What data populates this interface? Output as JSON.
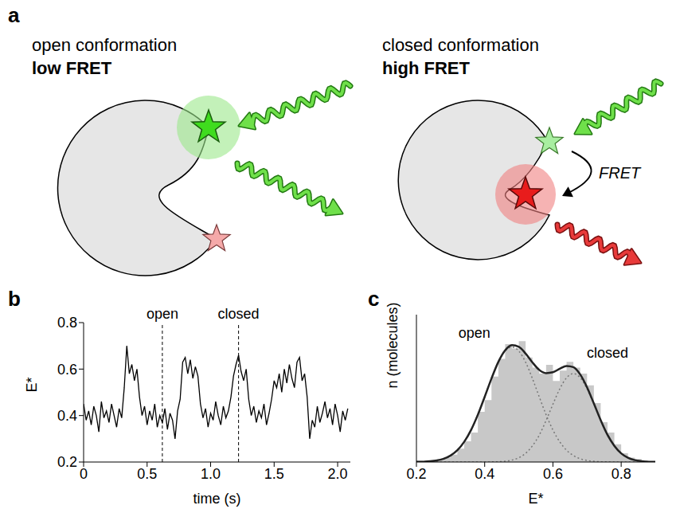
{
  "diagram": {
    "panel": "a",
    "left": {
      "title": "open conformation",
      "state": "low FRET"
    },
    "right": {
      "title": "closed conformation",
      "state": "high FRET",
      "arrow_label": "FRET"
    }
  },
  "chart_data": [
    {
      "panel": "b",
      "type": "line",
      "x_label": "time (s)",
      "y_label": "E*",
      "color": "#000000",
      "xlim": [
        0,
        2.1
      ],
      "xticks": [
        0,
        0.5,
        {
          "value": 1,
          "label": "1.0"
        },
        1.5,
        {
          "value": 2,
          "label": "2.0"
        }
      ],
      "ylim": [
        0.2,
        0.8
      ],
      "yticks": [
        0.2,
        0.4,
        0.6,
        0.8
      ],
      "annotations": [
        {
          "text": "open",
          "x": 0.62
        },
        {
          "text": "closed",
          "x": 1.22
        }
      ],
      "x": [
        0,
        0.02,
        0.04,
        0.06,
        0.08,
        0.1,
        0.12,
        0.14,
        0.16,
        0.18,
        0.2,
        0.22,
        0.24,
        0.26,
        0.28,
        0.3,
        0.32,
        0.34,
        0.36,
        0.38,
        0.4,
        0.42,
        0.44,
        0.46,
        0.48,
        0.5,
        0.52,
        0.54,
        0.56,
        0.58,
        0.6,
        0.62,
        0.64,
        0.66,
        0.68,
        0.7,
        0.72,
        0.74,
        0.76,
        0.78,
        0.8,
        0.82,
        0.84,
        0.86,
        0.88,
        0.9,
        0.92,
        0.94,
        0.96,
        0.98,
        1,
        1.02,
        1.04,
        1.06,
        1.08,
        1.1,
        1.12,
        1.14,
        1.16,
        1.18,
        1.2,
        1.22,
        1.24,
        1.26,
        1.28,
        1.3,
        1.32,
        1.34,
        1.36,
        1.38,
        1.4,
        1.42,
        1.44,
        1.46,
        1.48,
        1.5,
        1.52,
        1.54,
        1.56,
        1.58,
        1.6,
        1.62,
        1.64,
        1.66,
        1.68,
        1.7,
        1.72,
        1.74,
        1.76,
        1.78,
        1.8,
        1.82,
        1.84,
        1.86,
        1.88,
        1.9,
        1.92,
        1.94,
        1.96,
        1.98,
        2,
        2.02,
        2.04,
        2.06,
        2.08
      ],
      "values": [
        0.45,
        0.38,
        0.42,
        0.36,
        0.44,
        0.4,
        0.33,
        0.46,
        0.39,
        0.42,
        0.37,
        0.45,
        0.4,
        0.35,
        0.43,
        0.39,
        0.52,
        0.7,
        0.58,
        0.62,
        0.55,
        0.6,
        0.48,
        0.4,
        0.44,
        0.36,
        0.42,
        0.38,
        0.45,
        0.35,
        0.4,
        0.37,
        0.43,
        0.34,
        0.41,
        0.38,
        0.3,
        0.42,
        0.47,
        0.63,
        0.65,
        0.58,
        0.64,
        0.56,
        0.61,
        0.57,
        0.45,
        0.39,
        0.43,
        0.35,
        0.41,
        0.38,
        0.46,
        0.4,
        0.36,
        0.44,
        0.39,
        0.42,
        0.48,
        0.57,
        0.62,
        0.66,
        0.59,
        0.55,
        0.6,
        0.47,
        0.4,
        0.44,
        0.37,
        0.42,
        0.39,
        0.45,
        0.36,
        0.41,
        0.47,
        0.55,
        0.52,
        0.58,
        0.5,
        0.6,
        0.54,
        0.62,
        0.56,
        0.52,
        0.63,
        0.65,
        0.55,
        0.58,
        0.48,
        0.3,
        0.38,
        0.35,
        0.44,
        0.37,
        0.41,
        0.46,
        0.39,
        0.43,
        0.36,
        0.45,
        0.4,
        0.33,
        0.42,
        0.38,
        0.43
      ]
    },
    {
      "panel": "c",
      "type": "histogram",
      "x_label": "E*",
      "y_label": "n (molecules)",
      "color": "#c8c8c8",
      "xlim": [
        0.2,
        0.9
      ],
      "xticks": [
        0.2,
        0.4,
        0.6,
        0.8
      ],
      "ylim": [
        0,
        100
      ],
      "tick_labels": "x",
      "bins": [
        0.2,
        0.22,
        0.24,
        0.26,
        0.28,
        0.3,
        0.32,
        0.34,
        0.36,
        0.38,
        0.4,
        0.42,
        0.44,
        0.46,
        0.48,
        0.5,
        0.52,
        0.54,
        0.56,
        0.58,
        0.6,
        0.62,
        0.64,
        0.66,
        0.68,
        0.7,
        0.72,
        0.74,
        0.76,
        0.78,
        0.8,
        0.82,
        0.84,
        0.86,
        0.88,
        0.9
      ],
      "counts": [
        1,
        0,
        1,
        2,
        3,
        5,
        9,
        14,
        20,
        34,
        42,
        58,
        70,
        80,
        77,
        82,
        71,
        64,
        60,
        66,
        55,
        62,
        68,
        64,
        60,
        52,
        40,
        27,
        20,
        12,
        6,
        3,
        2,
        1,
        0
      ],
      "annotations": [
        {
          "text": "open",
          "x": 0.37,
          "y": 88
        },
        {
          "text": "closed",
          "x": 0.76,
          "y": 74
        }
      ],
      "curves": {
        "x": [
          0.2,
          0.22,
          0.24,
          0.26,
          0.28,
          0.3,
          0.32,
          0.34,
          0.36,
          0.38,
          0.4,
          0.42,
          0.44,
          0.46,
          0.48,
          0.5,
          0.52,
          0.54,
          0.56,
          0.58,
          0.6,
          0.62,
          0.64,
          0.66,
          0.68,
          0.7,
          0.72,
          0.74,
          0.76,
          0.78,
          0.8,
          0.82,
          0.84,
          0.86,
          0.88,
          0.9
        ],
        "series": [
          {
            "color": "#777777",
            "line_style": "dotted",
            "values": [
              0.1,
              0.2,
              0.5,
              1.1,
              2.2,
              4.4,
              8.0,
              13.7,
              21.7,
              32.1,
              44.2,
              56.6,
              67.7,
              75.3,
              78,
              75.3,
              67.7,
              56.6,
              44.2,
              32.1,
              21.7,
              13.7,
              8.0,
              4.4,
              2.2,
              1.1,
              0.5,
              0.2,
              0.1,
              0,
              0,
              0,
              0,
              0,
              0,
              0
            ]
          },
          {
            "color": "#777777",
            "line_style": "dotted",
            "values": [
              0,
              0,
              0,
              0,
              0,
              0,
              0,
              0,
              0,
              0,
              0,
              0.1,
              0.2,
              0.5,
              1.3,
              2.9,
              5.9,
              11.0,
              18.3,
              28.2,
              39.2,
              49.6,
              57.2,
              60,
              57.2,
              49.6,
              39.2,
              28.2,
              18.3,
              11.0,
              5.9,
              2.9,
              1.3,
              0.6,
              0.2,
              0.1
            ]
          },
          {
            "color": "#222222",
            "line_style": "solid",
            "values": [
              0.1,
              0.2,
              0.5,
              1.1,
              2.2,
              4.4,
              8.0,
              13.7,
              21.7,
              32.1,
              44.2,
              56.7,
              67.9,
              75.8,
              79.3,
              78.2,
              73.6,
              67.6,
              62.5,
              60.3,
              60.9,
              63.3,
              65.2,
              64.4,
              59.4,
              50.7,
              39.7,
              28.4,
              18.4,
              11.0,
              5.9,
              2.9,
              1.3,
              0.6,
              0.2,
              0.1
            ]
          }
        ]
      }
    }
  ]
}
